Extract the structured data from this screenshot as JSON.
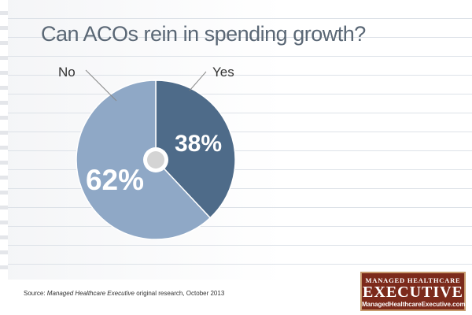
{
  "chart_data": {
    "type": "pie",
    "title": "Can ACOs rein in spending growth?",
    "slices": [
      {
        "label": "Yes",
        "value": 38,
        "display": "38%",
        "color": "#4e6b89"
      },
      {
        "label": "No",
        "value": 62,
        "display": "62%",
        "color": "#8fa8c6"
      }
    ]
  },
  "footer": {
    "source_prefix": "Source: ",
    "source_publication": "Managed Healthcare Executive",
    "source_suffix": " original research, October 2013"
  },
  "logo": {
    "line1": "MANAGED HEALTHCARE",
    "line2": "EXECUTIVE",
    "line3": "ManagedHealthcareExecutive.com",
    "background": "#7c2a1b"
  }
}
